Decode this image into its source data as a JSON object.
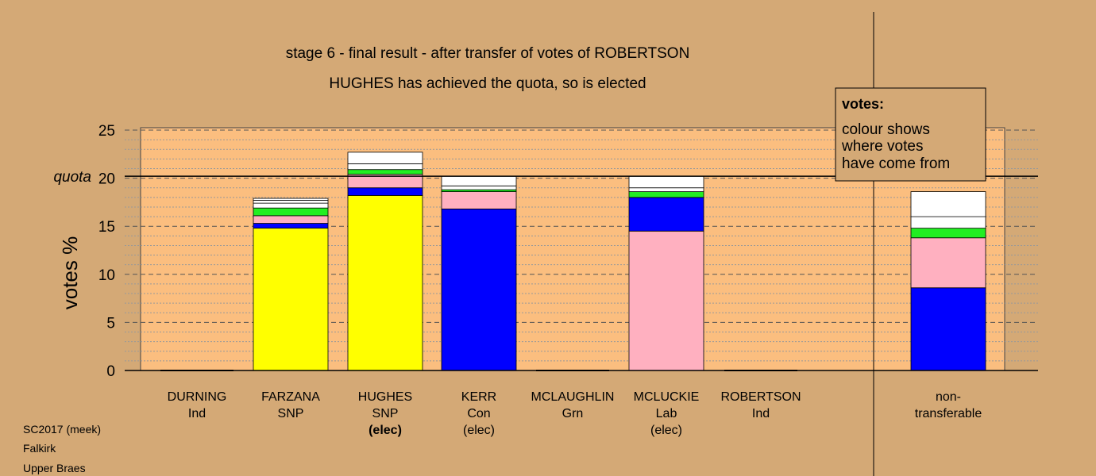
{
  "chart_data": {
    "type": "bar",
    "stacked": true,
    "title": "stage 6 - final result - after transfer of votes of ROBERTSON",
    "subtitle": "HUGHES has achieved the quota, so is elected",
    "ylabel": "votes %",
    "ylim": [
      0,
      25
    ],
    "yticks": [
      "0",
      "5",
      "10",
      "15",
      "20",
      "25"
    ],
    "quota": 20.2,
    "quota_label": "quota",
    "legend": {
      "title": "votes:",
      "lines": [
        "colour shows",
        "where votes",
        "have come from"
      ]
    },
    "colors": {
      "background": "#d4a976",
      "plot_area": "#fbbe7f",
      "yellow": "#ffff00",
      "blue": "#0000ff",
      "pink": "#ffb0c0",
      "green": "#22ee22",
      "white": "#ffffff"
    },
    "categories": [
      {
        "name": "DURNING",
        "party": "Ind",
        "status": ""
      },
      {
        "name": "FARZANA",
        "party": "SNP",
        "status": ""
      },
      {
        "name": "HUGHES",
        "party": "SNP",
        "status": "(elec)",
        "status_bold": true
      },
      {
        "name": "KERR",
        "party": "Con",
        "status": "(elec)"
      },
      {
        "name": "MCLAUGHLIN",
        "party": "Grn",
        "status": ""
      },
      {
        "name": "MCLUCKIE",
        "party": "Lab",
        "status": "(elec)"
      },
      {
        "name": "ROBERTSON",
        "party": "Ind",
        "status": ""
      },
      {
        "name": "non-",
        "party": "transferable",
        "status": ""
      }
    ],
    "bars": [
      [],
      [
        {
          "color": "yellow",
          "value": 14.8
        },
        {
          "color": "blue",
          "value": 0.5
        },
        {
          "color": "pink",
          "value": 0.8
        },
        {
          "color": "green",
          "value": 0.8
        },
        {
          "color": "white",
          "value": 0.5
        },
        {
          "color": "white",
          "value": 0.3
        },
        {
          "color": "white",
          "value": 0.2
        }
      ],
      [
        {
          "color": "yellow",
          "value": 18.2
        },
        {
          "color": "blue",
          "value": 0.8
        },
        {
          "color": "pink",
          "value": 1.4
        },
        {
          "color": "green",
          "value": 0.5
        },
        {
          "color": "white",
          "value": 0.6
        },
        {
          "color": "white",
          "value": 1.2
        }
      ],
      [
        {
          "color": "blue",
          "value": 16.8
        },
        {
          "color": "pink",
          "value": 1.8
        },
        {
          "color": "green",
          "value": 0.2
        },
        {
          "color": "white",
          "value": 0.4
        },
        {
          "color": "white",
          "value": 1.0
        }
      ],
      [],
      [
        {
          "color": "pink",
          "value": 14.5
        },
        {
          "color": "blue",
          "value": 3.5
        },
        {
          "color": "green",
          "value": 0.6
        },
        {
          "color": "white",
          "value": 0.4
        },
        {
          "color": "white",
          "value": 1.2
        }
      ],
      [],
      [
        {
          "color": "blue",
          "value": 8.6
        },
        {
          "color": "pink",
          "value": 5.2
        },
        {
          "color": "green",
          "value": 1.0
        },
        {
          "color": "white",
          "value": 1.2
        },
        {
          "color": "white",
          "value": 2.6
        }
      ]
    ]
  },
  "footer": {
    "line1": "SC2017 (meek)",
    "line2": "Falkirk",
    "line3": "Upper Braes"
  }
}
